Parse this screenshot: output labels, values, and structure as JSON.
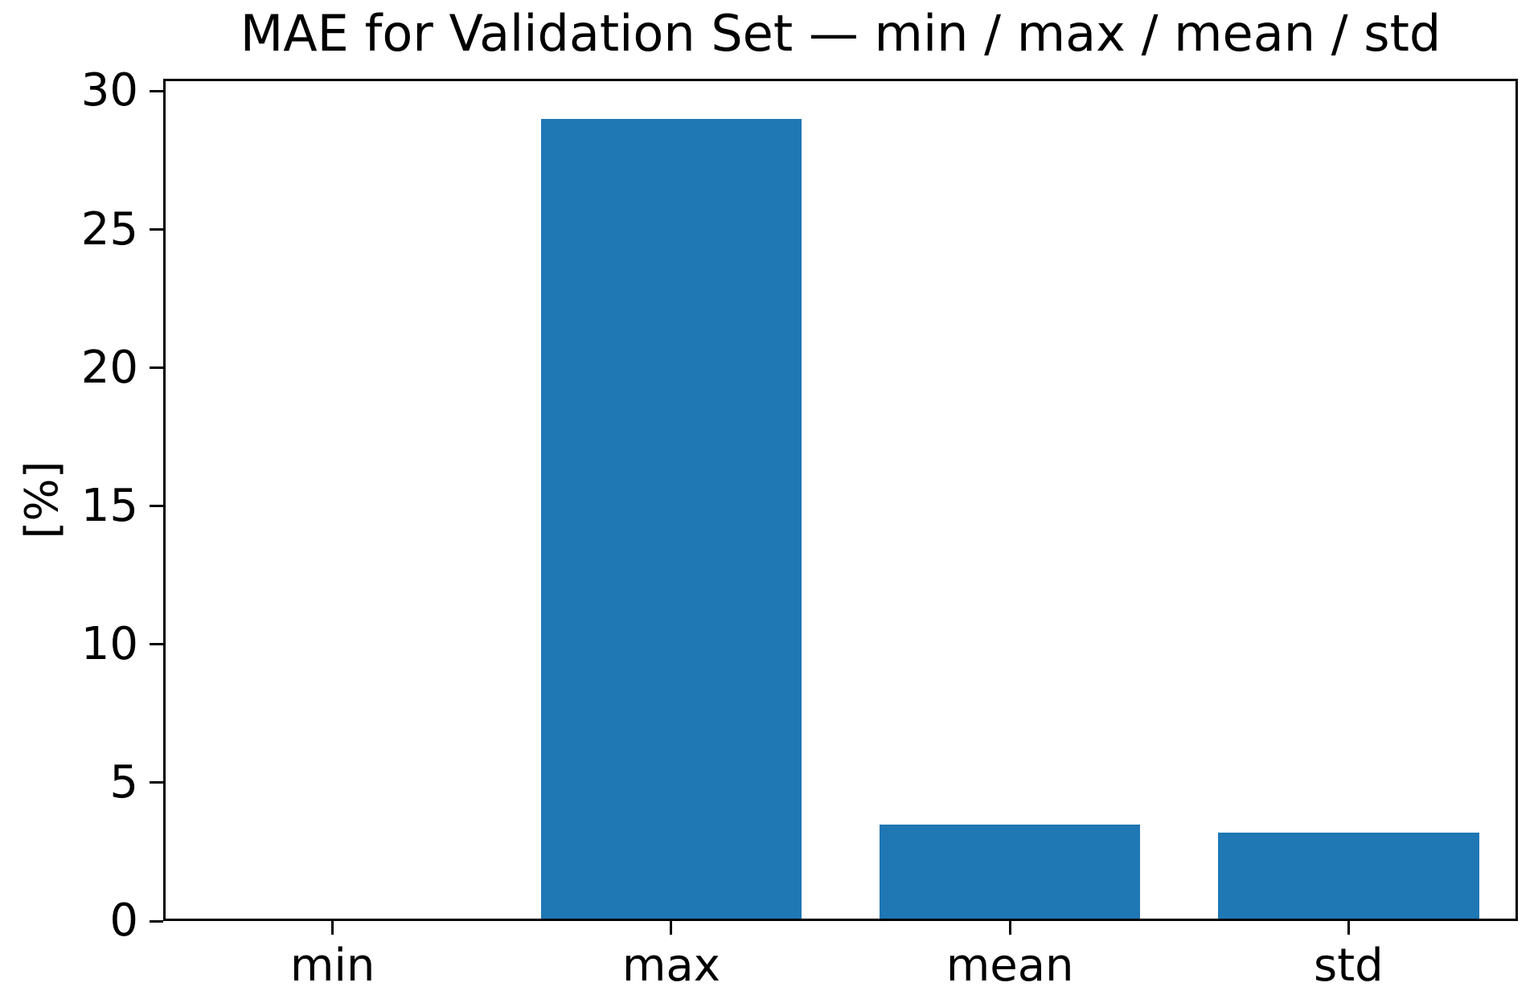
{
  "chart_data": {
    "type": "bar",
    "title": "MAE for Validation Set — min / max / mean / std",
    "categories": [
      "min",
      "max",
      "mean",
      "std"
    ],
    "values": [
      0.0,
      29.0,
      3.5,
      3.2
    ],
    "xlabel": "",
    "ylabel": "[%]",
    "ylim": [
      0,
      30.45
    ],
    "yticks": [
      0,
      5,
      10,
      15,
      20,
      25,
      30
    ],
    "bar_color": "#1f77b4",
    "axis_color": "#000000",
    "text_color": "#000000",
    "background_color": "#ffffff",
    "bar_width_fraction": 0.77,
    "grid": false,
    "legend": false
  }
}
